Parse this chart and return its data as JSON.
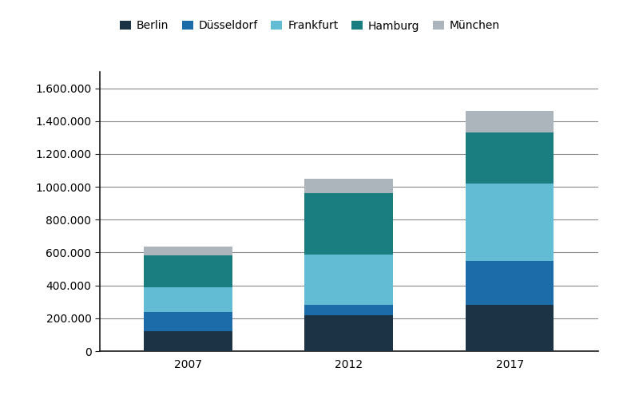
{
  "years": [
    "2007",
    "2012",
    "2017"
  ],
  "cities": [
    "Berlin",
    "Düsseldorf",
    "Frankfurt",
    "Hamburg",
    "München"
  ],
  "values": {
    "Berlin": [
      120000,
      220000,
      280000
    ],
    "Düsseldorf": [
      120000,
      60000,
      270000
    ],
    "Frankfurt": [
      150000,
      310000,
      470000
    ],
    "Hamburg": [
      195000,
      370000,
      310000
    ],
    "München": [
      50000,
      90000,
      130000
    ]
  },
  "colors": {
    "Berlin": "#1c3346",
    "Düsseldorf": "#1b6ca8",
    "Frankfurt": "#62bcd4",
    "Hamburg": "#1a7e80",
    "München": "#adb5bc"
  },
  "ylim": [
    0,
    1700000
  ],
  "yticks": [
    0,
    200000,
    400000,
    600000,
    800000,
    1000000,
    1200000,
    1400000,
    1600000
  ],
  "bar_width": 0.55,
  "background_color": "#ffffff",
  "grid_color": "#888888",
  "legend_fontsize": 10,
  "tick_fontsize": 10,
  "border_color": "#1a1a1a"
}
